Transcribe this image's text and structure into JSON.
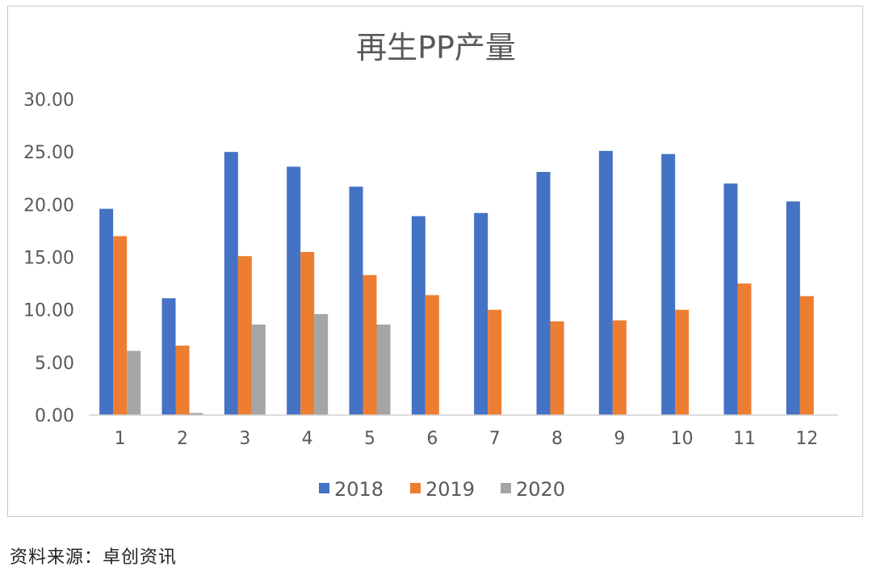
{
  "chart_data": {
    "type": "bar",
    "title": "再生PP产量",
    "categories": [
      "1",
      "2",
      "3",
      "4",
      "5",
      "6",
      "7",
      "8",
      "9",
      "10",
      "11",
      "12"
    ],
    "series": [
      {
        "name": "2018",
        "color": "#4472C4",
        "values": [
          19.6,
          11.1,
          25.0,
          23.6,
          21.7,
          18.9,
          19.2,
          23.1,
          25.1,
          24.8,
          22.0,
          20.3
        ]
      },
      {
        "name": "2019",
        "color": "#ED7D31",
        "values": [
          17.0,
          6.6,
          15.1,
          15.5,
          13.3,
          11.4,
          10.0,
          8.9,
          9.0,
          10.0,
          12.5,
          11.3
        ]
      },
      {
        "name": "2020",
        "color": "#A5A5A5",
        "values": [
          6.1,
          0.2,
          8.6,
          9.6,
          8.6,
          null,
          null,
          null,
          null,
          null,
          null,
          null
        ]
      }
    ],
    "y_ticks": [
      "0.00",
      "5.00",
      "10.00",
      "15.00",
      "20.00",
      "25.00",
      "30.00"
    ],
    "ylim": [
      0,
      30
    ],
    "legend_position": "bottom",
    "grid": false
  },
  "source_text": "资料来源：卓创资讯"
}
